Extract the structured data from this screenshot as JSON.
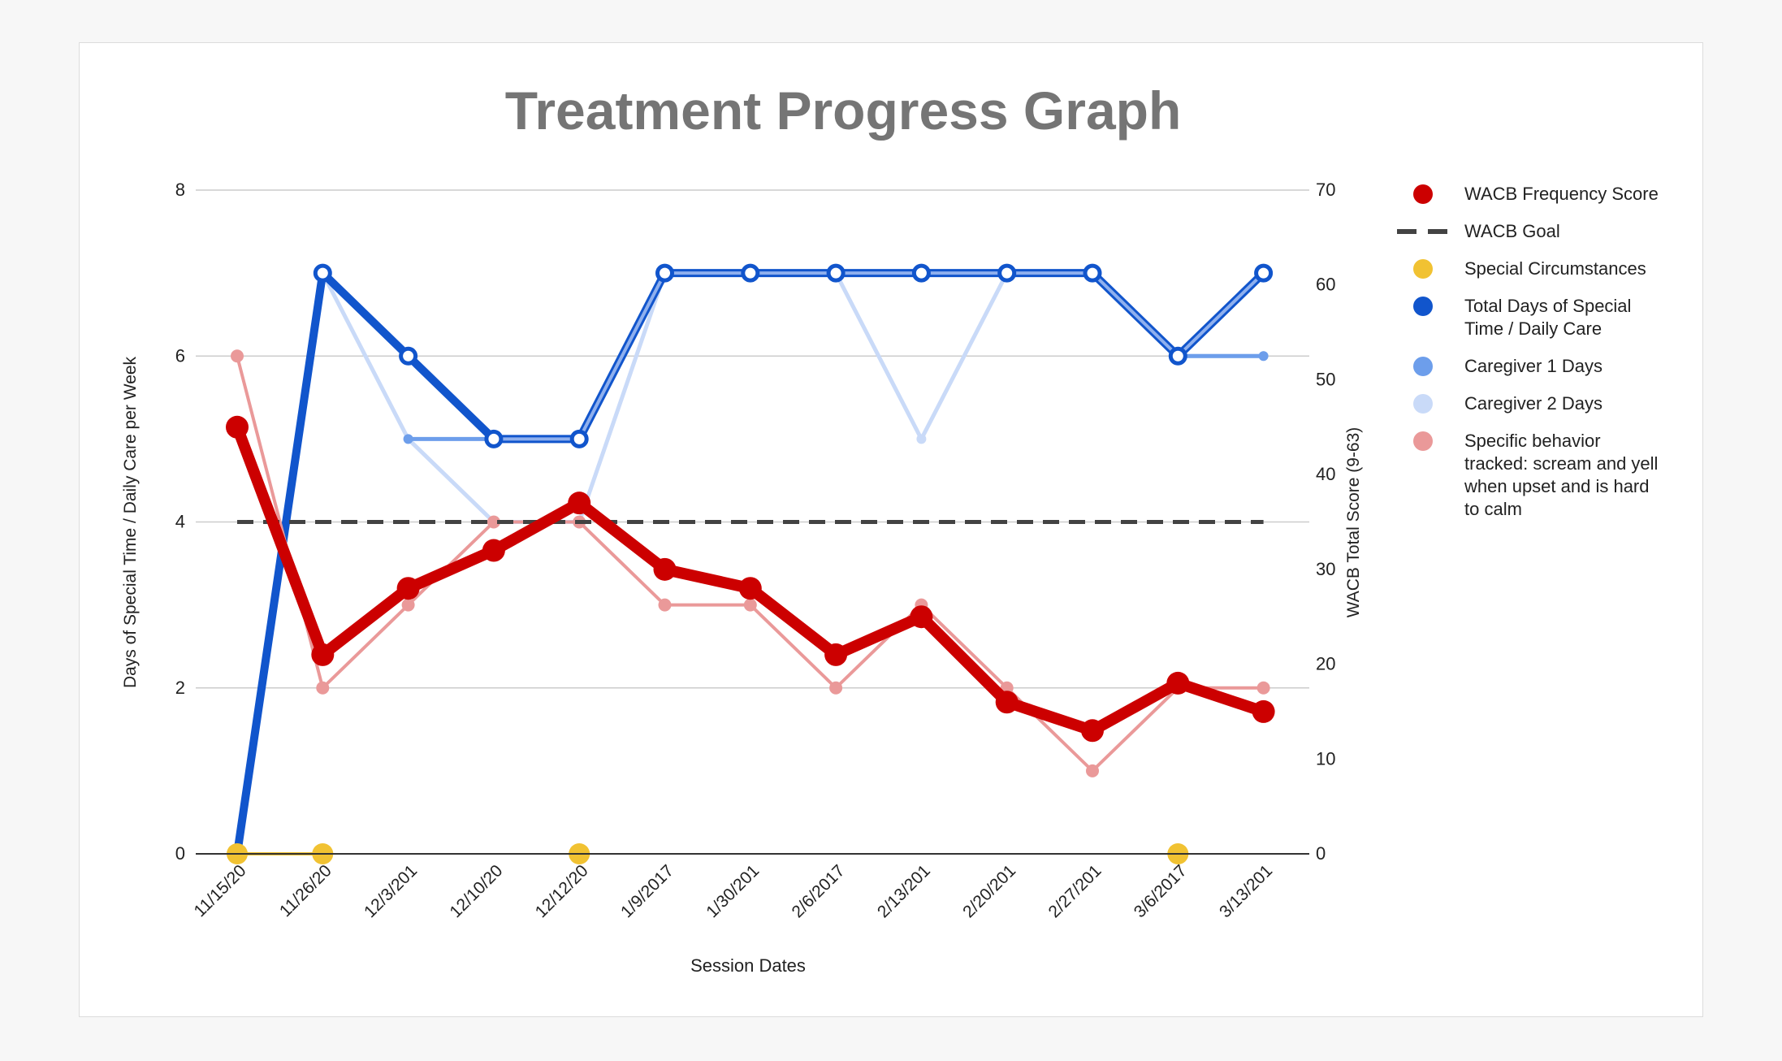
{
  "chart_data": {
    "type": "line",
    "title": "Treatment Progress Graph",
    "xlabel": "Session Dates",
    "ylabel_left": "Days of Special Time / Daily Care per Week",
    "ylabel_right": "WACB Total Score (9-63)",
    "ylim_left": [
      0,
      8
    ],
    "ylim_right": [
      0,
      70
    ],
    "yticks_left": [
      0,
      2,
      4,
      6,
      8
    ],
    "yticks_right": [
      0,
      10,
      20,
      30,
      40,
      50,
      60,
      70
    ],
    "grid": true,
    "legend_position": "right",
    "categories": [
      "11/15/20",
      "11/26/20",
      "12/3/201",
      "12/10/20",
      "12/12/20",
      "1/9/2017",
      "1/30/201",
      "2/6/2017",
      "2/13/201",
      "2/20/201",
      "2/27/201",
      "3/6/2017",
      "3/13/201"
    ],
    "series": [
      {
        "name": "Caregiver 2 Days",
        "axis": "left",
        "color": "#c9daf8",
        "values": [
          null,
          7,
          5,
          4,
          4,
          7,
          7,
          7,
          5,
          7,
          7,
          6,
          6
        ]
      },
      {
        "name": "Caregiver 1 Days",
        "axis": "left",
        "color": "#6d9eeb",
        "values": [
          null,
          null,
          5,
          5,
          5,
          7,
          7,
          7,
          7,
          7,
          7,
          6,
          6
        ]
      },
      {
        "name": "Total Days of Special Time / Daily Care",
        "axis": "left",
        "color": "#1155cc",
        "values": [
          0,
          7,
          6,
          5,
          5,
          7,
          7,
          7,
          7,
          7,
          7,
          6,
          7
        ]
      },
      {
        "name": "Specific behavior tracked: scream and yell when upset and is hard to calm",
        "axis": "left",
        "color": "#ea9999",
        "values": [
          6,
          2,
          3,
          4,
          4,
          3,
          3,
          2,
          3,
          2,
          1,
          2,
          2
        ]
      },
      {
        "name": "WACB Goal",
        "axis": "left",
        "color": "#434343",
        "values": [
          4,
          4,
          4,
          4,
          4,
          4,
          4,
          4,
          4,
          4,
          4,
          4,
          4
        ]
      },
      {
        "name": "WACB Frequency Score",
        "axis": "right",
        "color": "#cc0000",
        "values": [
          45,
          21,
          28,
          32,
          37,
          30,
          28,
          21,
          25,
          16,
          13,
          18,
          15
        ]
      },
      {
        "name": "Special Circumstances",
        "axis": "left",
        "color": "#f1c232",
        "values": [
          0,
          0,
          null,
          null,
          0,
          null,
          null,
          null,
          null,
          null,
          null,
          0,
          null
        ]
      }
    ],
    "legend": [
      {
        "label": "WACB Frequency Score",
        "color": "#cc0000",
        "marker": "dot"
      },
      {
        "label": "WACB Goal",
        "color": "#434343",
        "marker": "dash"
      },
      {
        "label": "Special Circumstances",
        "color": "#f1c232",
        "marker": "dot"
      },
      {
        "label": "Total Days of Special Time / Daily Care",
        "color": "#1155cc",
        "marker": "dot",
        "lines": [
          "Total Days of Special",
          "Time / Daily Care"
        ]
      },
      {
        "label": "Caregiver 1 Days",
        "color": "#6d9eeb",
        "marker": "dot"
      },
      {
        "label": "Caregiver 2 Days",
        "color": "#c9daf8",
        "marker": "dot"
      },
      {
        "label": "Specific behavior tracked: scream and yell when upset and is hard to calm",
        "color": "#ea9999",
        "marker": "dot",
        "lines": [
          "Specific behavior",
          "tracked: scream and yell",
          "when upset and is hard",
          "to calm"
        ]
      }
    ]
  }
}
